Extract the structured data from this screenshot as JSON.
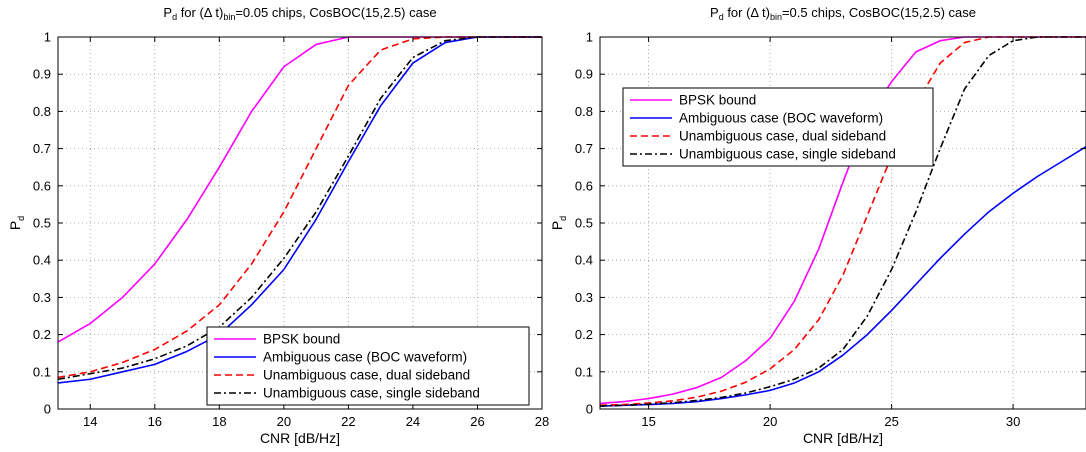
{
  "chart_data": [
    {
      "type": "line",
      "title": {
        "p1": "P",
        "s1": "d",
        "p2": " for (Δ t)",
        "s2": "bin",
        "p3": "=0.05 chips, CosBOC(15,2.5) case"
      },
      "xlabel": "CNR [dB/Hz]",
      "ylabel": {
        "main": "P",
        "sub": "d"
      },
      "xlim": [
        13,
        28
      ],
      "ylim": [
        0,
        1
      ],
      "xticks": [
        14,
        16,
        18,
        20,
        22,
        24,
        26,
        28
      ],
      "yticks": [
        0,
        0.1,
        0.2,
        0.3,
        0.4,
        0.5,
        0.6,
        0.7,
        0.8,
        0.9,
        1
      ],
      "grid": true,
      "legend_position": "bottom-right",
      "series": [
        {
          "name": "BPSK bound",
          "color": "#ff00ff",
          "dash": "solid",
          "x": [
            13,
            14,
            15,
            16,
            17,
            18,
            19,
            20,
            21,
            22,
            23,
            24,
            25,
            26,
            27,
            28
          ],
          "y": [
            0.18,
            0.23,
            0.3,
            0.39,
            0.51,
            0.65,
            0.8,
            0.92,
            0.98,
            1.0,
            1.0,
            1.0,
            1.0,
            1.0,
            1.0,
            1.0
          ]
        },
        {
          "name": "Ambiguous case (BOC waveform)",
          "color": "#0000ff",
          "dash": "solid",
          "x": [
            13,
            14,
            15,
            16,
            17,
            18,
            19,
            20,
            21,
            22,
            23,
            24,
            25,
            26,
            27,
            28
          ],
          "y": [
            0.07,
            0.08,
            0.1,
            0.12,
            0.155,
            0.2,
            0.28,
            0.375,
            0.51,
            0.665,
            0.815,
            0.93,
            0.985,
            1.0,
            1.0,
            1.0
          ]
        },
        {
          "name": "Unambiguous case, dual sideband",
          "color": "#ff0000",
          "dash": "dashed",
          "x": [
            13,
            14,
            15,
            16,
            17,
            18,
            19,
            20,
            21,
            22,
            23,
            24,
            25,
            26,
            27,
            28
          ],
          "y": [
            0.085,
            0.1,
            0.125,
            0.16,
            0.21,
            0.28,
            0.39,
            0.53,
            0.7,
            0.87,
            0.965,
            0.995,
            1.0,
            1.0,
            1.0,
            1.0
          ]
        },
        {
          "name": "Unambiguous case, single sideband",
          "color": "#000000",
          "dash": "dashdot",
          "x": [
            13,
            14,
            15,
            16,
            17,
            18,
            19,
            20,
            21,
            22,
            23,
            24,
            25,
            26,
            27,
            28
          ],
          "y": [
            0.08,
            0.095,
            0.11,
            0.135,
            0.17,
            0.22,
            0.3,
            0.405,
            0.53,
            0.68,
            0.835,
            0.945,
            0.99,
            1.0,
            1.0,
            1.0
          ]
        }
      ]
    },
    {
      "type": "line",
      "title": {
        "p1": "P",
        "s1": "d",
        "p2": " for (Δ t)",
        "s2": "bin",
        "p3": "=0.5 chips, CosBOC(15,2.5) case"
      },
      "xlabel": "CNR [dB/Hz]",
      "ylabel": {
        "main": "P",
        "sub": "d"
      },
      "xlim": [
        13,
        33
      ],
      "ylim": [
        0,
        1
      ],
      "xticks": [
        15,
        20,
        25,
        30
      ],
      "yticks": [
        0,
        0.1,
        0.2,
        0.3,
        0.4,
        0.5,
        0.6,
        0.7,
        0.8,
        0.9,
        1
      ],
      "grid": true,
      "legend_position": "top-left",
      "series": [
        {
          "name": "BPSK bound",
          "color": "#ff00ff",
          "dash": "solid",
          "x": [
            13,
            14,
            15,
            16,
            17,
            18,
            19,
            20,
            21,
            22,
            23,
            24,
            25,
            26,
            27,
            28,
            29,
            30,
            31,
            32,
            33
          ],
          "y": [
            0.015,
            0.02,
            0.028,
            0.04,
            0.058,
            0.085,
            0.13,
            0.19,
            0.29,
            0.43,
            0.61,
            0.78,
            0.88,
            0.96,
            0.99,
            1.0,
            1.0,
            1.0,
            1.0,
            1.0,
            1.0
          ]
        },
        {
          "name": "Ambiguous case (BOC waveform)",
          "color": "#0000ff",
          "dash": "solid",
          "x": [
            13,
            14,
            15,
            16,
            17,
            18,
            19,
            20,
            21,
            22,
            23,
            24,
            25,
            26,
            27,
            28,
            29,
            30,
            31,
            32,
            33
          ],
          "y": [
            0.008,
            0.01,
            0.012,
            0.015,
            0.02,
            0.028,
            0.038,
            0.05,
            0.07,
            0.1,
            0.145,
            0.2,
            0.265,
            0.335,
            0.405,
            0.47,
            0.53,
            0.58,
            0.625,
            0.665,
            0.705
          ]
        },
        {
          "name": "Unambiguous case, dual sideband",
          "color": "#ff0000",
          "dash": "dashed",
          "x": [
            13,
            14,
            15,
            16,
            17,
            18,
            19,
            20,
            21,
            22,
            23,
            24,
            25,
            26,
            27,
            28,
            29,
            30,
            31,
            32,
            33
          ],
          "y": [
            0.01,
            0.012,
            0.016,
            0.022,
            0.032,
            0.048,
            0.072,
            0.108,
            0.16,
            0.24,
            0.36,
            0.52,
            0.68,
            0.82,
            0.93,
            0.985,
            1.0,
            1.0,
            1.0,
            1.0,
            1.0
          ]
        },
        {
          "name": "Unambiguous case, single sideband",
          "color": "#000000",
          "dash": "dashdot",
          "x": [
            13,
            14,
            15,
            16,
            17,
            18,
            19,
            20,
            21,
            22,
            23,
            24,
            25,
            26,
            27,
            28,
            29,
            30,
            31,
            32,
            33
          ],
          "y": [
            0.008,
            0.01,
            0.013,
            0.017,
            0.023,
            0.031,
            0.043,
            0.06,
            0.08,
            0.11,
            0.16,
            0.25,
            0.375,
            0.53,
            0.7,
            0.86,
            0.95,
            0.99,
            1.0,
            1.0,
            1.0
          ]
        }
      ]
    }
  ]
}
